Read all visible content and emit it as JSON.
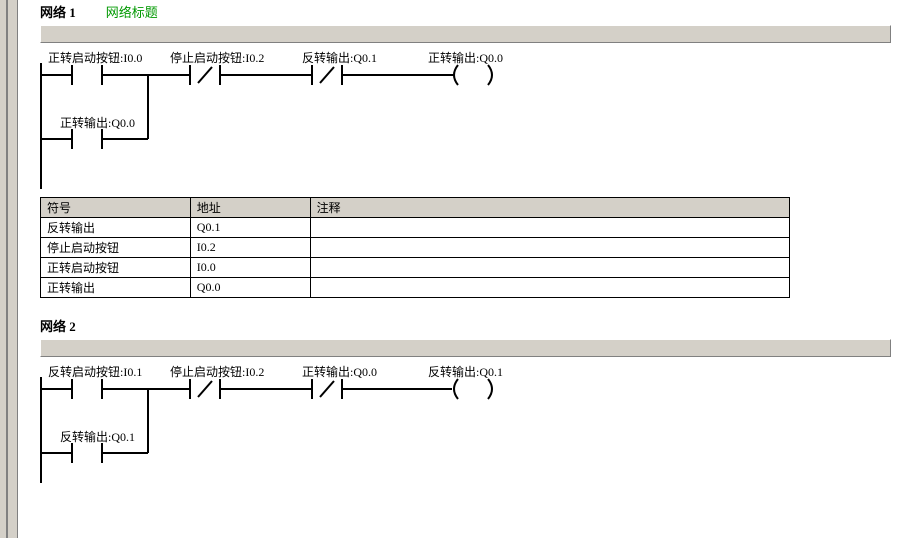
{
  "network1": {
    "label": "网络 1",
    "title": "网络标题",
    "rung1": {
      "c1": "正转启动按钮:I0.0",
      "c2": "停止启动按钮:I0.2",
      "c3": "反转输出:Q0.1",
      "coil": "正转输出:Q0.0"
    },
    "rung2": {
      "c1": "正转输出:Q0.0"
    }
  },
  "network2": {
    "label": "网络 2",
    "rung1": {
      "c1": "反转启动按钮:I0.1",
      "c2": "停止启动按钮:I0.2",
      "c3": "正转输出:Q0.0",
      "coil": "反转输出:Q0.1"
    },
    "rung2": {
      "c1": "反转输出:Q0.1"
    }
  },
  "symbolTable": {
    "head": {
      "sym": "符号",
      "addr": "地址",
      "comment": "注释"
    },
    "rows": [
      {
        "sym": "反转输出",
        "addr": "Q0.1",
        "comment": ""
      },
      {
        "sym": "停止启动按钮",
        "addr": "I0.2",
        "comment": ""
      },
      {
        "sym": "正转启动按钮",
        "addr": "I0.0",
        "comment": ""
      },
      {
        "sym": "正转输出",
        "addr": "Q0.0",
        "comment": ""
      }
    ]
  },
  "style": {
    "lineColor": "#000000",
    "lineWidth": 2,
    "greenColor": "#009900",
    "grayBg": "#d4d0c8"
  }
}
